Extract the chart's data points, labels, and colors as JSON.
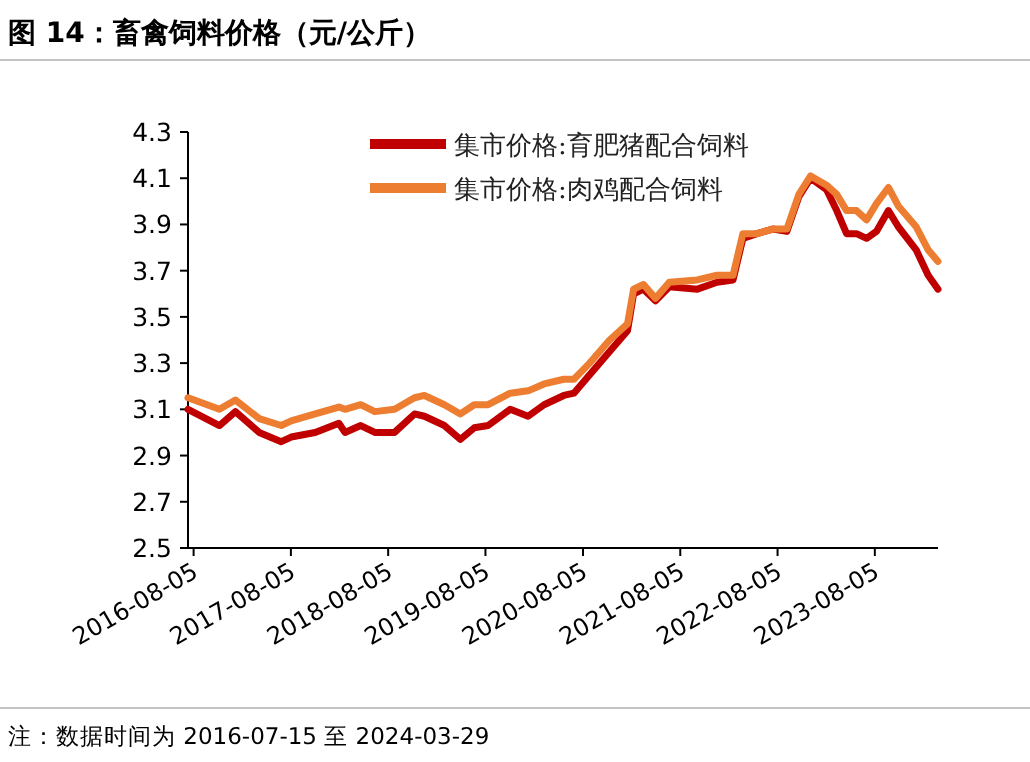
{
  "chart_data": {
    "type": "line",
    "title": "图 14：畜禽饲料价格（元/公斤）",
    "x": [
      "2016-07-15",
      "2016-11-10",
      "2017-01-09",
      "2017-04-08",
      "2017-06-30",
      "2017-08-06",
      "2017-11-04",
      "2018-02-01",
      "2018-02-24",
      "2018-04-24",
      "2018-06-16",
      "2018-08-29",
      "2018-11-12",
      "2018-12-19",
      "2019-03-04",
      "2019-05-03",
      "2019-06-24",
      "2019-08-15",
      "2019-11-06",
      "2020-01-12",
      "2020-03-12",
      "2020-05-25",
      "2020-07-02",
      "2020-08-30",
      "2020-11-13",
      "2021-01-19",
      "2021-02-11",
      "2021-03-20",
      "2021-05-04",
      "2021-06-25",
      "2021-10-08",
      "2021-12-21",
      "2022-02-19",
      "2022-03-28",
      "2022-05-20",
      "2022-07-18",
      "2022-09-09",
      "2022-10-24",
      "2022-12-07",
      "2023-02-05",
      "2023-03-15",
      "2023-04-21",
      "2023-05-28",
      "2023-07-05",
      "2023-08-11",
      "2023-09-25",
      "2023-11-01",
      "2024-01-07",
      "2024-02-21",
      "2024-03-29"
    ],
    "series": [
      {
        "name": "集市价格:育肥猪配合饲料",
        "color": "#c00000",
        "values": [
          3.1,
          3.03,
          3.09,
          3.0,
          2.96,
          2.98,
          3.0,
          3.04,
          3.0,
          3.03,
          3.0,
          3.0,
          3.08,
          3.07,
          3.03,
          2.97,
          3.02,
          3.03,
          3.1,
          3.07,
          3.12,
          3.16,
          3.17,
          3.25,
          3.35,
          3.44,
          3.6,
          3.62,
          3.57,
          3.63,
          3.62,
          3.65,
          3.66,
          3.84,
          3.86,
          3.88,
          3.87,
          4.02,
          4.1,
          4.05,
          3.96,
          3.86,
          3.86,
          3.84,
          3.87,
          3.96,
          3.89,
          3.79,
          3.68,
          3.62
        ]
      },
      {
        "name": "集市价格:肉鸡配合饲料",
        "color": "#ed7d31",
        "values": [
          3.15,
          3.1,
          3.14,
          3.06,
          3.03,
          3.05,
          3.08,
          3.11,
          3.1,
          3.12,
          3.09,
          3.1,
          3.15,
          3.16,
          3.12,
          3.08,
          3.12,
          3.12,
          3.17,
          3.18,
          3.21,
          3.23,
          3.23,
          3.3,
          3.4,
          3.47,
          3.62,
          3.64,
          3.58,
          3.65,
          3.66,
          3.68,
          3.68,
          3.86,
          3.86,
          3.88,
          3.88,
          4.03,
          4.11,
          4.07,
          4.03,
          3.96,
          3.96,
          3.92,
          3.99,
          4.06,
          3.98,
          3.89,
          3.79,
          3.74
        ]
      }
    ],
    "xlim": [
      "2016-07-15",
      "2024-03-29"
    ],
    "xticks": [
      "2016-08-05",
      "2017-08-05",
      "2018-08-05",
      "2019-08-05",
      "2020-08-05",
      "2021-08-05",
      "2022-08-05",
      "2023-08-05"
    ],
    "ylim": [
      2.5,
      4.3
    ],
    "yticks": [
      2.5,
      2.7,
      2.9,
      3.1,
      3.3,
      3.5,
      3.7,
      3.9,
      4.1,
      4.3
    ],
    "legend": "top",
    "grid": false,
    "line_style": "solid",
    "annotations": [
      "注：数据时间为 2016-07-15 至 2024-03-29"
    ]
  }
}
